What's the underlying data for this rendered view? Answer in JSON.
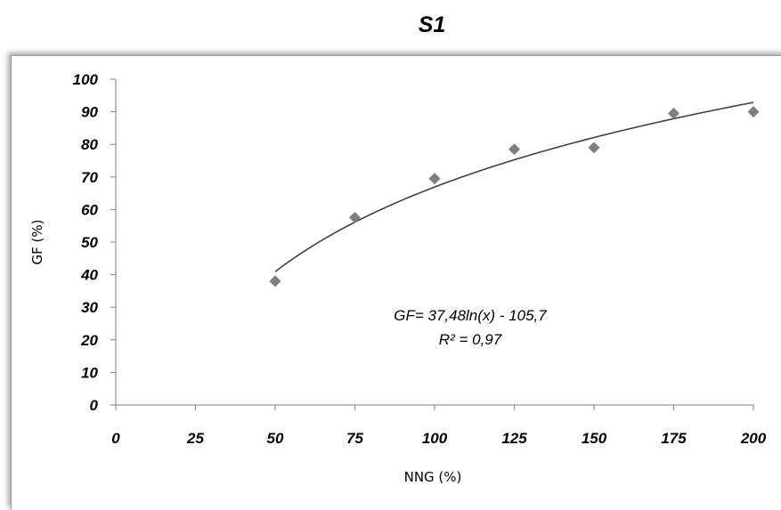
{
  "chart_data": {
    "type": "scatter",
    "title": "S1",
    "xlabel": "NNG (%)",
    "ylabel": "GF (%)",
    "xlim": [
      0,
      200
    ],
    "ylim": [
      0,
      100
    ],
    "xticks": [
      "0",
      "25",
      "50",
      "75",
      "100",
      "125",
      "150",
      "175",
      "200"
    ],
    "yticks": [
      "0",
      "10",
      "20",
      "30",
      "40",
      "50",
      "60",
      "70",
      "80",
      "90",
      "100"
    ],
    "points": {
      "x": [
        50,
        75,
        100,
        125,
        150,
        175,
        200
      ],
      "y": [
        38,
        57.5,
        69.5,
        78.5,
        79,
        89.5,
        90
      ]
    },
    "trendline": {
      "type": "logarithmic",
      "a": 37.48,
      "b": -105.7,
      "x_range": [
        50,
        200
      ]
    },
    "annotations": {
      "equation": "GF= 37,48ln(x) - 105,7",
      "r_squared": "R² = 0,97"
    },
    "colors": {
      "marker": "#7f7f7f",
      "trendline": "#404040",
      "axis": "#7f7f7f"
    }
  }
}
